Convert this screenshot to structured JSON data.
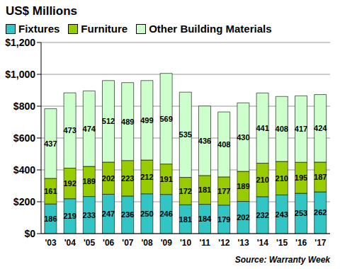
{
  "chart_data": {
    "type": "bar",
    "title": "US$ Millions",
    "annotations": [
      "Source: Warranty Week"
    ],
    "categories": [
      "'03",
      "'04",
      "'05",
      "'06",
      "'07",
      "'08",
      "'09",
      "'10",
      "'11",
      "'12",
      "'13",
      "'14",
      "'15",
      "'16",
      "'17"
    ],
    "series": [
      {
        "name": "Fixtures",
        "color": "#33C4C4",
        "values": [
          186,
          219,
          233,
          247,
          236,
          250,
          246,
          181,
          184,
          179,
          202,
          232,
          243,
          253,
          262
        ]
      },
      {
        "name": "Furniture",
        "color": "#99CC00",
        "values": [
          161,
          192,
          189,
          202,
          223,
          212,
          191,
          172,
          181,
          177,
          189,
          210,
          210,
          195,
          187
        ]
      },
      {
        "name": "Other Building Materials",
        "color": "#CCFFCC",
        "values": [
          437,
          473,
          474,
          512,
          489,
          499,
          569,
          535,
          436,
          408,
          430,
          441,
          408,
          417,
          424
        ]
      }
    ],
    "ylim": [
      0,
      1200
    ],
    "yticks": [
      {
        "value": 0,
        "label": "$0"
      },
      {
        "value": 200,
        "label": "$200"
      },
      {
        "value": 400,
        "label": "$400"
      },
      {
        "value": 600,
        "label": "$600"
      },
      {
        "value": 800,
        "label": "$800"
      },
      {
        "value": 1000,
        "label": "$1,000"
      },
      {
        "value": 1200,
        "label": "$1,200"
      }
    ],
    "stacked": true,
    "data_labels": true,
    "grid": true,
    "legend": "top"
  }
}
